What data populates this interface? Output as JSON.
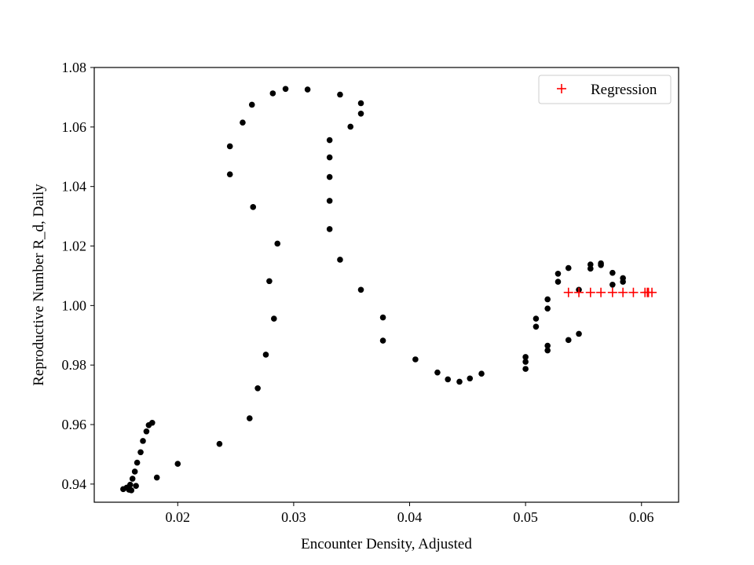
{
  "chart_data": {
    "type": "scatter",
    "title": "",
    "xlabel": "Encounter Density, Adjusted",
    "ylabel": "Reproductive Number R_d, Daily",
    "xlim": [
      0.0128,
      0.0632
    ],
    "ylim": [
      0.9339,
      1.08
    ],
    "xticks": [
      0.02,
      0.03,
      0.04,
      0.05,
      0.06
    ],
    "xtick_labels": [
      "0.02",
      "0.03",
      "0.04",
      "0.05",
      "0.06"
    ],
    "yticks": [
      0.94,
      0.96,
      0.98,
      1.0,
      1.02,
      1.04,
      1.06,
      1.08
    ],
    "ytick_labels": [
      "0.94",
      "0.96",
      "0.98",
      "1.00",
      "1.02",
      "1.04",
      "1.06",
      "1.08"
    ],
    "grid": false,
    "legend_position": "top-right",
    "series": [
      {
        "marker": "dot",
        "color": "#000000",
        "points": [
          [
            0.0153,
            0.9383
          ],
          [
            0.0156,
            0.9388
          ],
          [
            0.0158,
            0.9381
          ],
          [
            0.0159,
            0.9398
          ],
          [
            0.016,
            0.9379
          ],
          [
            0.0161,
            0.9418
          ],
          [
            0.0163,
            0.9442
          ],
          [
            0.0164,
            0.9394
          ],
          [
            0.0165,
            0.9472
          ],
          [
            0.0168,
            0.9507
          ],
          [
            0.017,
            0.9545
          ],
          [
            0.0173,
            0.9577
          ],
          [
            0.0175,
            0.9598
          ],
          [
            0.0178,
            0.9606
          ],
          [
            0.0182,
            0.9422
          ],
          [
            0.02,
            0.9468
          ],
          [
            0.0236,
            0.9535
          ],
          [
            0.0245,
            1.0535
          ],
          [
            0.0245,
            1.0441
          ],
          [
            0.0256,
            1.0615
          ],
          [
            0.0262,
            0.9621
          ],
          [
            0.0264,
            1.0675
          ],
          [
            0.0265,
            1.0331
          ],
          [
            0.0269,
            0.9722
          ],
          [
            0.0276,
            0.9835
          ],
          [
            0.0279,
            1.0082
          ],
          [
            0.0282,
            1.0713
          ],
          [
            0.0283,
            0.9956
          ],
          [
            0.0286,
            1.0208
          ],
          [
            0.0293,
            1.0728
          ],
          [
            0.0312,
            1.0726
          ],
          [
            0.0331,
            1.0556
          ],
          [
            0.0331,
            1.0498
          ],
          [
            0.0331,
            1.0432
          ],
          [
            0.0331,
            1.0352
          ],
          [
            0.0331,
            1.0257
          ],
          [
            0.034,
            1.0709
          ],
          [
            0.034,
            1.0154
          ],
          [
            0.0349,
            1.0601
          ],
          [
            0.0358,
            1.068
          ],
          [
            0.0358,
            1.0645
          ],
          [
            0.0358,
            1.0053
          ],
          [
            0.0377,
            0.996
          ],
          [
            0.0377,
            0.9882
          ],
          [
            0.0405,
            0.9819
          ],
          [
            0.0424,
            0.9775
          ],
          [
            0.0433,
            0.9752
          ],
          [
            0.0443,
            0.9744
          ],
          [
            0.0452,
            0.9755
          ],
          [
            0.0462,
            0.9771
          ],
          [
            0.05,
            0.9827
          ],
          [
            0.05,
            0.9811
          ],
          [
            0.05,
            0.9787
          ],
          [
            0.0509,
            0.9956
          ],
          [
            0.0509,
            0.9929
          ],
          [
            0.0519,
            1.0021
          ],
          [
            0.0519,
            0.999
          ],
          [
            0.0519,
            0.9865
          ],
          [
            0.0519,
            0.9849
          ],
          [
            0.0528,
            1.0107
          ],
          [
            0.0528,
            1.008
          ],
          [
            0.0537,
            1.0126
          ],
          [
            0.0537,
            0.9884
          ],
          [
            0.0546,
            1.0053
          ],
          [
            0.0546,
            0.9905
          ],
          [
            0.0556,
            1.0138
          ],
          [
            0.0556,
            1.0124
          ],
          [
            0.0565,
            1.0142
          ],
          [
            0.0565,
            1.0136
          ],
          [
            0.0575,
            1.011
          ],
          [
            0.0575,
            1.007
          ],
          [
            0.0584,
            1.0092
          ],
          [
            0.0584,
            1.008
          ]
        ]
      },
      {
        "name": "Regression",
        "marker": "plus",
        "color": "#ff0000",
        "points": [
          [
            0.0537,
            1.0044
          ],
          [
            0.0546,
            1.0044
          ],
          [
            0.0556,
            1.0044
          ],
          [
            0.0565,
            1.0044
          ],
          [
            0.0575,
            1.0044
          ],
          [
            0.0584,
            1.0044
          ],
          [
            0.0593,
            1.0044
          ],
          [
            0.0603,
            1.0044
          ],
          [
            0.0605,
            1.0044
          ],
          [
            0.0606,
            1.0044
          ],
          [
            0.0609,
            1.0044
          ]
        ]
      }
    ]
  }
}
